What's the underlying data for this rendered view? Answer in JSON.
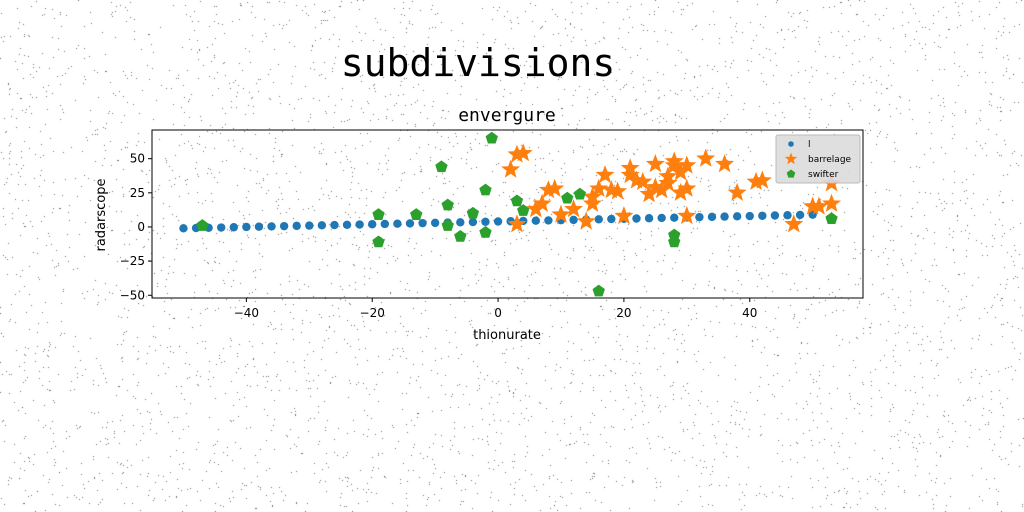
{
  "figure_title": "subdivisions",
  "chart_data": {
    "type": "scatter",
    "title": "envergure",
    "xlabel": "thionurate",
    "ylabel": "radarscope",
    "xlim": [
      -55,
      58
    ],
    "ylim": [
      -52,
      71
    ],
    "x_ticks": [
      -40,
      -20,
      0,
      20,
      40
    ],
    "x_tick_labels": [
      "−40",
      "−20",
      "0",
      "20",
      "40"
    ],
    "y_ticks": [
      -50,
      -25,
      0,
      25,
      50
    ],
    "y_tick_labels": [
      "−50",
      "−25",
      "0",
      "25",
      "50"
    ],
    "grid": false,
    "legend_position": "top-right",
    "series": [
      {
        "name": "l",
        "marker": "circle",
        "color": "#1f77b4",
        "points": [
          [
            -50,
            -1
          ],
          [
            -48,
            -0.8
          ],
          [
            -46,
            -0.6
          ],
          [
            -44,
            -0.4
          ],
          [
            -42,
            -0.2
          ],
          [
            -40,
            0
          ],
          [
            -38,
            0.2
          ],
          [
            -36,
            0.4
          ],
          [
            -34,
            0.6
          ],
          [
            -32,
            0.8
          ],
          [
            -30,
            1
          ],
          [
            -28,
            1.2
          ],
          [
            -26,
            1.4
          ],
          [
            -24,
            1.6
          ],
          [
            -22,
            1.8
          ],
          [
            -20,
            2
          ],
          [
            -18,
            2.2
          ],
          [
            -16,
            2.4
          ],
          [
            -14,
            2.6
          ],
          [
            -12,
            2.8
          ],
          [
            -10,
            3
          ],
          [
            -8,
            3.2
          ],
          [
            -6,
            3.4
          ],
          [
            -4,
            3.6
          ],
          [
            -2,
            3.8
          ],
          [
            0,
            4
          ],
          [
            2,
            4.2
          ],
          [
            4,
            4.4
          ],
          [
            6,
            4.6
          ],
          [
            8,
            4.8
          ],
          [
            10,
            5
          ],
          [
            12,
            5.2
          ],
          [
            14,
            5.4
          ],
          [
            16,
            5.6
          ],
          [
            18,
            5.8
          ],
          [
            20,
            6
          ],
          [
            22,
            6.2
          ],
          [
            24,
            6.4
          ],
          [
            26,
            6.6
          ],
          [
            28,
            6.8
          ],
          [
            30,
            7
          ],
          [
            32,
            7.2
          ],
          [
            34,
            7.4
          ],
          [
            36,
            7.6
          ],
          [
            38,
            7.8
          ],
          [
            40,
            8
          ],
          [
            42,
            8.2
          ],
          [
            44,
            8.4
          ],
          [
            46,
            8.6
          ],
          [
            48,
            8.8
          ],
          [
            50,
            9
          ]
        ]
      },
      {
        "name": "barrelage",
        "marker": "star",
        "color": "#ff7f0e",
        "points": [
          [
            3,
            53
          ],
          [
            4,
            54
          ],
          [
            2,
            42
          ],
          [
            3,
            2
          ],
          [
            6,
            13
          ],
          [
            7,
            17
          ],
          [
            8,
            27
          ],
          [
            9,
            28
          ],
          [
            10,
            9
          ],
          [
            12,
            13
          ],
          [
            14,
            4
          ],
          [
            15,
            22
          ],
          [
            15,
            17
          ],
          [
            16,
            28
          ],
          [
            17,
            38
          ],
          [
            18,
            27
          ],
          [
            19,
            26
          ],
          [
            20,
            8
          ],
          [
            21,
            43
          ],
          [
            21,
            38
          ],
          [
            22,
            34
          ],
          [
            23,
            33
          ],
          [
            24,
            24
          ],
          [
            25,
            29
          ],
          [
            25,
            46
          ],
          [
            26,
            27
          ],
          [
            27,
            32
          ],
          [
            27,
            37
          ],
          [
            28,
            48
          ],
          [
            28,
            45
          ],
          [
            29,
            25
          ],
          [
            29,
            40
          ],
          [
            30,
            28
          ],
          [
            30,
            45
          ],
          [
            30,
            8
          ],
          [
            33,
            50
          ],
          [
            36,
            46
          ],
          [
            38,
            25
          ],
          [
            41,
            33
          ],
          [
            42,
            34
          ],
          [
            47,
            2
          ],
          [
            50,
            15
          ],
          [
            51,
            15
          ],
          [
            53,
            32
          ],
          [
            53,
            17
          ]
        ]
      },
      {
        "name": "swifter",
        "marker": "pentagon",
        "color": "#2ca02c",
        "points": [
          [
            -47,
            1
          ],
          [
            -19,
            9
          ],
          [
            -19,
            -11
          ],
          [
            -13,
            9
          ],
          [
            -9,
            44
          ],
          [
            -8,
            1
          ],
          [
            -8,
            16
          ],
          [
            -6,
            -7
          ],
          [
            -4,
            10
          ],
          [
            -2,
            -4
          ],
          [
            -2,
            27
          ],
          [
            -1,
            65
          ],
          [
            3,
            19
          ],
          [
            4,
            12
          ],
          [
            11,
            21
          ],
          [
            13,
            24
          ],
          [
            16,
            -47
          ],
          [
            28,
            -6
          ],
          [
            28,
            -11
          ],
          [
            53,
            6
          ]
        ]
      }
    ]
  }
}
